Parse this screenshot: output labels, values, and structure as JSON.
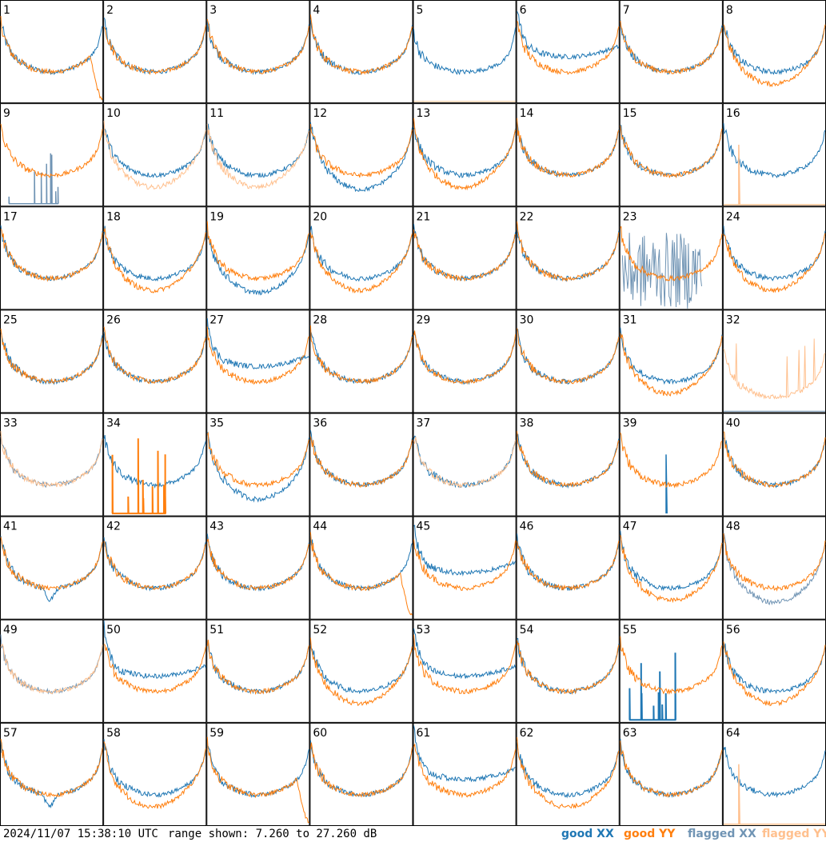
{
  "chart_data": {
    "type": "line",
    "grid": {
      "rows": 8,
      "cols": 8
    },
    "panels": [
      {
        "label": "1",
        "profile": "lowdrop",
        "xx": "good",
        "yy": "good"
      },
      {
        "label": "2",
        "profile": "normal",
        "xx": "good",
        "yy": "good"
      },
      {
        "label": "3",
        "profile": "normal",
        "xx": "good",
        "yy": "good"
      },
      {
        "label": "4",
        "profile": "normal",
        "xx": "good",
        "yy": "good"
      },
      {
        "label": "5",
        "profile": "dip",
        "xx": "good",
        "yy": "flagged-flat"
      },
      {
        "label": "6",
        "profile": "lowdrop-x",
        "xx": "good",
        "yy": "good"
      },
      {
        "label": "7",
        "profile": "normal",
        "xx": "good",
        "yy": "good"
      },
      {
        "label": "8",
        "profile": "split",
        "xx": "good",
        "yy": "good"
      },
      {
        "label": "9",
        "profile": "normal",
        "xx": "flagged-spikes",
        "yy": "good"
      },
      {
        "label": "10",
        "profile": "split",
        "xx": "good",
        "yy": "flagged"
      },
      {
        "label": "11",
        "profile": "split",
        "xx": "good",
        "yy": "flagged"
      },
      {
        "label": "12",
        "profile": "split-x",
        "xx": "good",
        "yy": "good"
      },
      {
        "label": "13",
        "profile": "split",
        "xx": "good",
        "yy": "good"
      },
      {
        "label": "14",
        "profile": "normal",
        "xx": "good",
        "yy": "good"
      },
      {
        "label": "15",
        "profile": "normal",
        "xx": "good",
        "yy": "good"
      },
      {
        "label": "16",
        "profile": "normal",
        "xx": "good",
        "yy": "flagged-spike"
      },
      {
        "label": "17",
        "profile": "normal",
        "xx": "good",
        "yy": "good"
      },
      {
        "label": "18",
        "profile": "split",
        "xx": "good",
        "yy": "good"
      },
      {
        "label": "19",
        "profile": "split-x",
        "xx": "good",
        "yy": "good"
      },
      {
        "label": "20",
        "profile": "split",
        "xx": "good",
        "yy": "good"
      },
      {
        "label": "21",
        "profile": "normal",
        "xx": "good",
        "yy": "good"
      },
      {
        "label": "22",
        "profile": "normal",
        "xx": "good",
        "yy": "good"
      },
      {
        "label": "23",
        "profile": "normal",
        "xx": "flagged-noise",
        "yy": "good"
      },
      {
        "label": "24",
        "profile": "split",
        "xx": "good",
        "yy": "good"
      },
      {
        "label": "25",
        "profile": "normal",
        "xx": "good",
        "yy": "good"
      },
      {
        "label": "26",
        "profile": "normal",
        "xx": "good",
        "yy": "good"
      },
      {
        "label": "27",
        "profile": "lowdrop-x",
        "xx": "good",
        "yy": "good"
      },
      {
        "label": "28",
        "profile": "normal",
        "xx": "good",
        "yy": "good"
      },
      {
        "label": "29",
        "profile": "normal",
        "xx": "good",
        "yy": "good"
      },
      {
        "label": "30",
        "profile": "normal",
        "xx": "good",
        "yy": "good"
      },
      {
        "label": "31",
        "profile": "split",
        "xx": "good",
        "yy": "good"
      },
      {
        "label": "32",
        "profile": "normal",
        "xx": "flagged-flat",
        "yy": "flagged-spiky"
      },
      {
        "label": "33",
        "profile": "normal",
        "xx": "flagged",
        "yy": "flagged"
      },
      {
        "label": "34",
        "profile": "normal",
        "xx": "good",
        "yy": "flagged-spikes-good"
      },
      {
        "label": "35",
        "profile": "split-x",
        "xx": "good",
        "yy": "good"
      },
      {
        "label": "36",
        "profile": "normal",
        "xx": "good",
        "yy": "good"
      },
      {
        "label": "37",
        "profile": "normal",
        "xx": "good",
        "yy": "flagged"
      },
      {
        "label": "38",
        "profile": "normal",
        "xx": "good",
        "yy": "good"
      },
      {
        "label": "39",
        "profile": "normal",
        "xx": "good-spike",
        "yy": "good"
      },
      {
        "label": "40",
        "profile": "normal",
        "xx": "good",
        "yy": "good"
      },
      {
        "label": "41",
        "profile": "notch",
        "xx": "good",
        "yy": "good"
      },
      {
        "label": "42",
        "profile": "normal",
        "xx": "good",
        "yy": "good"
      },
      {
        "label": "43",
        "profile": "normal",
        "xx": "good",
        "yy": "good"
      },
      {
        "label": "44",
        "profile": "lowdrop",
        "xx": "good",
        "yy": "good"
      },
      {
        "label": "45",
        "profile": "lowdrop-x",
        "xx": "good",
        "yy": "good"
      },
      {
        "label": "46",
        "profile": "normal",
        "xx": "good",
        "yy": "good"
      },
      {
        "label": "47",
        "profile": "split-y",
        "xx": "good",
        "yy": "good"
      },
      {
        "label": "48",
        "profile": "split-x",
        "xx": "flagged",
        "yy": "good"
      },
      {
        "label": "49",
        "profile": "normal",
        "xx": "flagged",
        "yy": "flagged"
      },
      {
        "label": "50",
        "profile": "lowdrop-x",
        "xx": "good",
        "yy": "good"
      },
      {
        "label": "51",
        "profile": "normal",
        "xx": "good",
        "yy": "good"
      },
      {
        "label": "52",
        "profile": "split",
        "xx": "good",
        "yy": "good"
      },
      {
        "label": "53",
        "profile": "lowdrop-x",
        "xx": "good",
        "yy": "good"
      },
      {
        "label": "54",
        "profile": "normal",
        "xx": "good",
        "yy": "good"
      },
      {
        "label": "55",
        "profile": "normal",
        "xx": "good-spikes",
        "yy": "good"
      },
      {
        "label": "56",
        "profile": "split",
        "xx": "good",
        "yy": "good"
      },
      {
        "label": "57",
        "profile": "notch",
        "xx": "good",
        "yy": "good"
      },
      {
        "label": "58",
        "profile": "split",
        "xx": "good",
        "yy": "good"
      },
      {
        "label": "59",
        "profile": "lowdrop",
        "xx": "good",
        "yy": "good"
      },
      {
        "label": "60",
        "profile": "normal",
        "xx": "good",
        "yy": "good"
      },
      {
        "label": "61",
        "profile": "lowdrop-x",
        "xx": "good",
        "yy": "good"
      },
      {
        "label": "62",
        "profile": "split-y",
        "xx": "good",
        "yy": "good"
      },
      {
        "label": "63",
        "profile": "normal",
        "xx": "good",
        "yy": "good"
      },
      {
        "label": "64",
        "profile": "normal",
        "xx": "good",
        "yy": "flagged-spike"
      }
    ],
    "ylim": [
      7.26,
      27.26
    ],
    "yunit": "dB",
    "legend": [
      {
        "name": "good XX",
        "color": "#1f77b4"
      },
      {
        "name": "good YY",
        "color": "#ff7f0e"
      },
      {
        "name": "flagged XX",
        "color": "#7094b4"
      },
      {
        "name": "flagged YY",
        "color": "#ffc08e"
      }
    ]
  },
  "footer": {
    "timestamp": "2024/11/07 15:38:10 UTC",
    "range": "range shown: 7.260 to 27.260 dB"
  },
  "legend_labels": {
    "good_xx": "good XX",
    "good_yy": "good YY",
    "flagged_xx": "flagged XX",
    "flagged_yy": "flagged YY"
  },
  "colors": {
    "good_xx": "#1f77b4",
    "good_yy": "#ff7f0e",
    "flagged_xx": "#7094b4",
    "flagged_yy": "#ffc08e"
  }
}
